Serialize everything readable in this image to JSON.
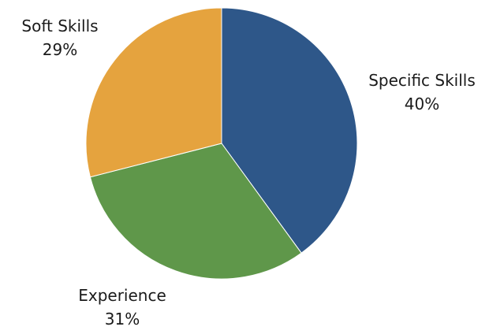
{
  "chart_data": {
    "type": "pie",
    "slices": [
      {
        "name": "Specific Skills",
        "value": 40,
        "label": "40%",
        "color": "#2e5789"
      },
      {
        "name": "Experience",
        "value": 31,
        "label": "31%",
        "color": "#5f974a"
      },
      {
        "name": "Soft Skills",
        "value": 29,
        "label": "29%",
        "color": "#e5a33e"
      }
    ]
  }
}
